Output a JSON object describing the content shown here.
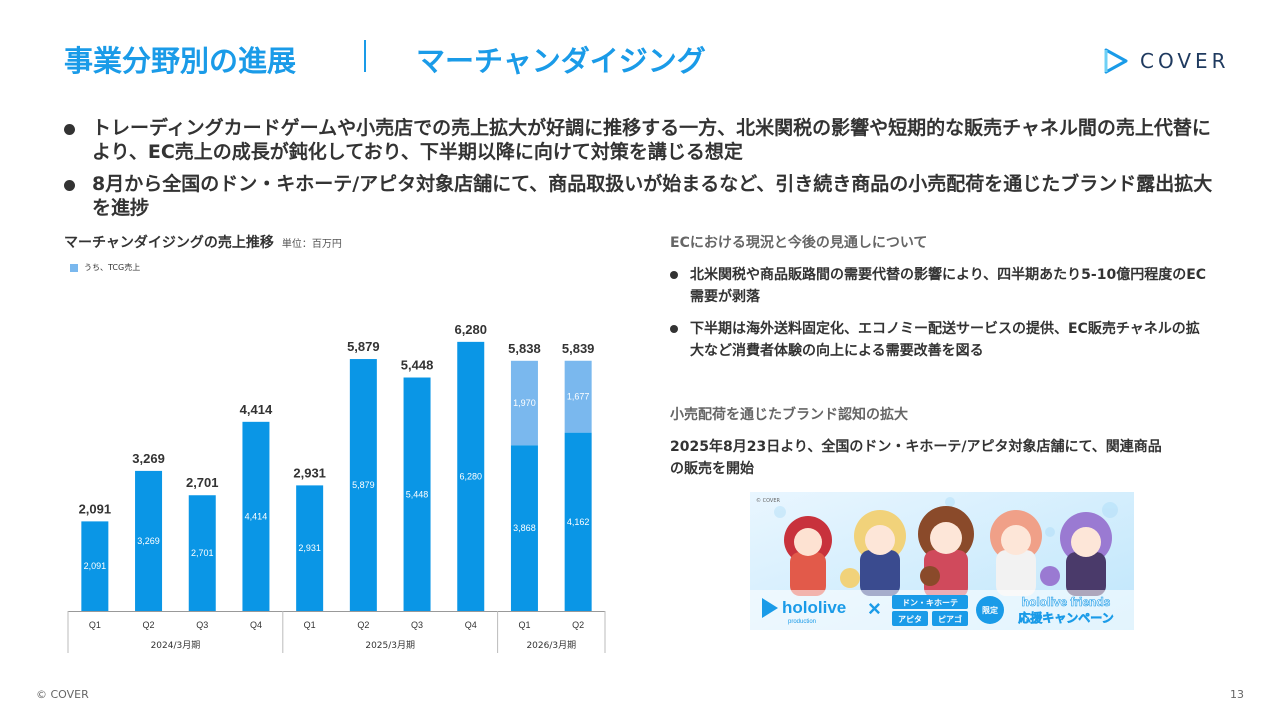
{
  "header": {
    "title": "事業分野別の進展",
    "subtitle": "マーチャンダイジング",
    "logo_text": "COVER"
  },
  "bullets": [
    {
      "text": "トレーディングカードゲームや小売店での売上拡大が好調に推移する一方、北米関税の影響や短期的な販売チャネル間の売上代替により、EC売上の成長が鈍化しており、下半期以降に向けて対策を講じる想定"
    },
    {
      "text": "8月から全国のドン・キホーテ/アピタ対象店舗にて、商品取扱いが始まるなど、引き続き商品の小売配荷を通じたブランド露出拡大を進捗"
    }
  ],
  "chart_data": {
    "type": "bar",
    "title": "マーチャンダイジングの売上推移",
    "unit": "単位：百万円",
    "categories": [
      "Q1",
      "Q2",
      "Q3",
      "Q4",
      "Q1",
      "Q2",
      "Q3",
      "Q4",
      "Q1",
      "Q2"
    ],
    "groups": [
      {
        "label": "2024/3月期",
        "count": 4
      },
      {
        "label": "2025/3月期",
        "count": 4
      },
      {
        "label": "2026/3月期",
        "count": 2
      }
    ],
    "totals": [
      2091,
      3269,
      2701,
      4414,
      2931,
      5879,
      5448,
      6280,
      5838,
      5839
    ],
    "total_labels": [
      "2,091",
      "3,269",
      "2,701",
      "4,414",
      "2,931",
      "5,879",
      "5,448",
      "6,280",
      "5,838",
      "5,839"
    ],
    "series": [
      {
        "values": [
          2091,
          3269,
          2701,
          4414,
          2931,
          5879,
          5448,
          6280,
          3868,
          4162
        ],
        "labels": [
          "2,091",
          "3,269",
          "2,701",
          "4,414",
          "2,931",
          "5,879",
          "5,448",
          "6,280",
          "3,868",
          "4,162"
        ],
        "color": "#0a96e6"
      },
      {
        "name": "うち、TCG売上",
        "values": [
          0,
          0,
          0,
          0,
          0,
          0,
          0,
          0,
          1970,
          1677
        ],
        "labels": [
          "",
          "",
          "",
          "",
          "",
          "",
          "",
          "",
          "1,970",
          "1,677"
        ],
        "color": "#7ab8ee"
      }
    ],
    "ylim": [
      0,
      7000
    ],
    "grid": false,
    "legend": "top-left"
  },
  "right": {
    "heading1": "ECにおける現況と今後の見通しについて",
    "points": [
      "北米関税や商品販路間の需要代替の影響により、四半期あたり5-10億円程度のEC需要が剥落",
      "下半期は海外送料固定化、エコノミー配送サービスの提供、EC販売チャネルの拡大など消費者体験の向上による需要改善を図る"
    ],
    "heading2": "小売配荷を通じたブランド認知の拡大",
    "body2": "2025年8月23日より、全国のドン・キホーテ/アピタ対象店舗にて、関連商品の販売を開始"
  },
  "banner": {
    "small": "© COVER",
    "brand": "hololive",
    "brand_sub": "production",
    "store_top": "ドン・キホーテ",
    "store_left": "アピタ",
    "store_right": "ピアゴ",
    "limited": "限定",
    "campaign_line1": "hololive friends",
    "campaign_line2": "応援キャンペーン"
  },
  "footer": {
    "copyright": "© COVER",
    "page": "13"
  },
  "colors": {
    "accent": "#1a9be8",
    "bar": "#0a96e6",
    "tcg": "#7ab8ee"
  }
}
